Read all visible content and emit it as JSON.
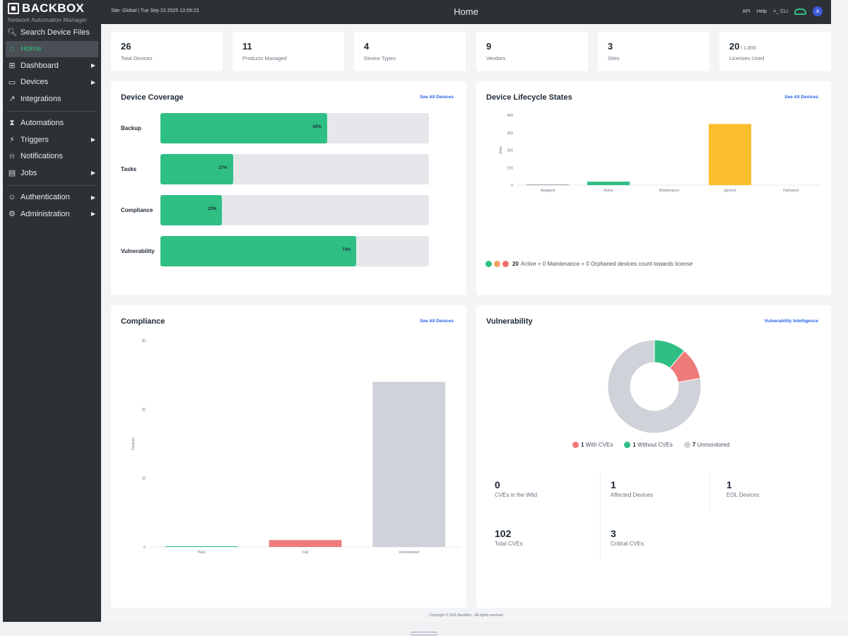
{
  "brand": {
    "name": "BACKBOX",
    "subtitle": "Network Automation Manager"
  },
  "topbar": {
    "site_text": "Site: Global  |  Tue Sep 23 2025 13:59:23",
    "title": "Home",
    "api": "API",
    "help": "Help",
    "cli": ">_ CLI",
    "avatar": "A"
  },
  "sidebar": {
    "search_label": "Search Device Files",
    "items": [
      {
        "label": "Home"
      },
      {
        "label": "Dashboard"
      },
      {
        "label": "Devices"
      },
      {
        "label": "Integrations"
      },
      {
        "label": "Automations"
      },
      {
        "label": "Triggers"
      },
      {
        "label": "Notifications"
      },
      {
        "label": "Jobs"
      },
      {
        "label": "Authentication"
      },
      {
        "label": "Administration"
      }
    ]
  },
  "stats": [
    {
      "value": "26",
      "label": "Total Devices"
    },
    {
      "value": "11",
      "label": "Products Managed"
    },
    {
      "value": "4",
      "label": "Device Types"
    },
    {
      "value": "9",
      "label": "Vendors"
    },
    {
      "value": "3",
      "label": "Sites"
    },
    {
      "value": "20",
      "suffix": " / 1,800",
      "label": "Licenses Used"
    }
  ],
  "coverage": {
    "title": "Device Coverage",
    "link": "See All Devices",
    "rows": [
      {
        "label": "Backup",
        "pct": 62,
        "pct_label": "62%"
      },
      {
        "label": "Tasks",
        "pct": 27,
        "pct_label": "27%"
      },
      {
        "label": "Compliance",
        "pct": 23,
        "pct_label": "23%"
      },
      {
        "label": "Vulnerability",
        "pct": 73,
        "pct_label": "73%"
      }
    ]
  },
  "lifecycle": {
    "title": "Device Lifecycle States",
    "link": "See All Devices",
    "legend_count": "20",
    "legend_text": "Active + 0 Maintenance + 0 Orphaned devices count towards license",
    "colors": {
      "active": "#2fbf84",
      "maintenance": "#f4a261",
      "orphaned": "#ef6f6c"
    }
  },
  "compliance": {
    "title": "Compliance",
    "link": "See All Devices"
  },
  "vulnerability": {
    "title": "Vulnerability",
    "link": "Vulnerability Intelligence",
    "legend": [
      {
        "count": "1",
        "label": "With CVEs",
        "color": "#ef7a7a"
      },
      {
        "count": "1",
        "label": "Without CVEs",
        "color": "#2fbf84"
      },
      {
        "count": "7",
        "label": "Unmonitored",
        "color": "#cfd2d8"
      }
    ],
    "stats": [
      {
        "value": "0",
        "label": "CVEs in the Wild"
      },
      {
        "value": "1",
        "label": "Affected Devices"
      },
      {
        "value": "1",
        "label": "EOL Devices"
      },
      {
        "value": "102",
        "label": "Total CVEs"
      },
      {
        "value": "3",
        "label": "Critical CVEs"
      }
    ]
  },
  "footer": {
    "text": "Copyright © 2025 BackBox - All rights reserved"
  },
  "chart_data": [
    {
      "type": "bar",
      "categories": [
        "Assigned",
        "Active",
        "Maintenance",
        "Ignored",
        "Orphaned"
      ],
      "values": [
        2,
        20,
        0,
        350,
        0
      ],
      "colors": [
        "#9ca3af",
        "#2fbf84",
        "#f4a261",
        "#fbbf2d",
        "#ef6f6c"
      ],
      "ylabel": "Sites",
      "yticks": [
        "400",
        "300",
        "200",
        "100",
        "0"
      ],
      "ylim": [
        0,
        400
      ],
      "grid": false
    },
    {
      "type": "bar",
      "categories": [
        "Pass",
        "Fail",
        "Unmonitored"
      ],
      "values": [
        0.1,
        1,
        24
      ],
      "colors": [
        "#2fbf84",
        "#ef7a7a",
        "#cfd2d8"
      ],
      "ylabel": "Devices",
      "yticks": [
        "30",
        "20",
        "10",
        "0"
      ],
      "ylim": [
        0,
        30
      ],
      "grid": false
    },
    {
      "type": "pie",
      "categories": [
        "Without CVEs",
        "With CVEs",
        "Unmonitored"
      ],
      "values": [
        1,
        1,
        7
      ],
      "colors": [
        "#2fbf84",
        "#ef7a7a",
        "#cfd2d8"
      ],
      "donut": true
    }
  ]
}
